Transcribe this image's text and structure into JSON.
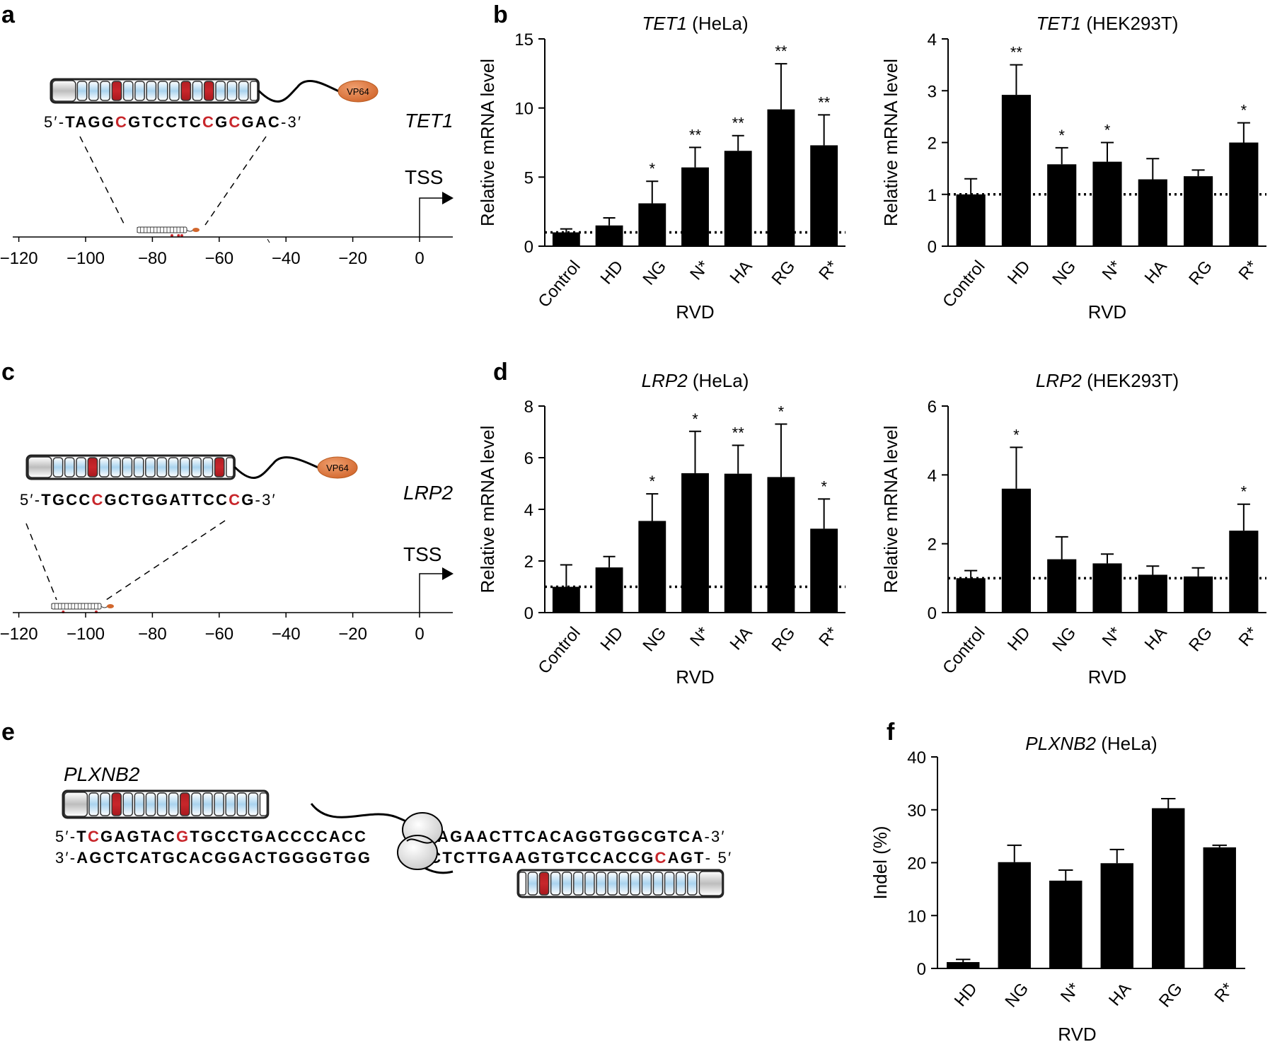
{
  "panels": {
    "a": {
      "letter": "a",
      "gene": "TET1",
      "seq_prefix": "5′-",
      "seq_suffix": "-3′",
      "sequence": [
        "T",
        "A",
        "G",
        "G",
        "C",
        "G",
        "T",
        "C",
        "C",
        "T",
        "C",
        "C",
        "G",
        "C",
        "G",
        "A",
        "C"
      ],
      "red_positions": [
        4,
        11,
        13
      ],
      "tale_repeats": 15,
      "tale_red_repeats": [
        3,
        9,
        11
      ],
      "effector": "VP64",
      "tss_label": "TSS",
      "axis_ticks": [
        "−120",
        "−100",
        "−80",
        "−60",
        "−40",
        "−20",
        "0"
      ]
    },
    "c": {
      "letter": "c",
      "gene": "LRP2",
      "seq_prefix": "5′-",
      "seq_suffix": "-3′",
      "sequence": [
        "T",
        "G",
        "C",
        "C",
        "C",
        "G",
        "C",
        "T",
        "G",
        "G",
        "A",
        "T",
        "T",
        "C",
        "C",
        "C",
        "G"
      ],
      "red_positions": [
        4,
        15
      ],
      "tale_repeats": 15,
      "tale_red_repeats": [
        3,
        14
      ],
      "effector": "VP64",
      "tss_label": "TSS",
      "axis_ticks": [
        "−120",
        "−100",
        "−80",
        "−60",
        "−40",
        "−20",
        "0"
      ]
    },
    "e": {
      "letter": "e",
      "gene": "PLXNB2",
      "top_strand": {
        "prefix": "5′-",
        "suffix": "-3′",
        "left": "TCGAGTACGTGCCTGACCCCACC",
        "right": "TGAGAACTTCACAGGTGGCGTCA",
        "left_red": [
          1,
          8
        ]
      },
      "bottom_strand": {
        "prefix": "3′-",
        "suffix": "- 5′",
        "left": "AGCTCATGCACGGACTGGGGTGG",
        "right": "ACTCTTGAAGTGTCCACCGCAGT",
        "right_red": [
          19
        ]
      }
    }
  },
  "chart_data": [
    {
      "id": "b-left",
      "panel_letter": "b",
      "type": "bar",
      "title_gene": "TET1",
      "title_cell": "(HeLa)",
      "categories": [
        "Control",
        "HD",
        "NG",
        "N*",
        "HA",
        "RG",
        "R*"
      ],
      "values": [
        1.0,
        1.5,
        3.1,
        5.7,
        6.9,
        9.9,
        7.3
      ],
      "errors": [
        0.25,
        0.55,
        1.6,
        1.45,
        1.1,
        3.3,
        2.2
      ],
      "significance": [
        "",
        "",
        "*",
        "**",
        "**",
        "**",
        "**"
      ],
      "ylabel": "Relative mRNA level",
      "xlabel": "RVD",
      "ylim": [
        0,
        15
      ],
      "yticks": [
        "0",
        "5",
        "10",
        "15"
      ],
      "reference_line": 1
    },
    {
      "id": "b-right",
      "type": "bar",
      "title_gene": "TET1",
      "title_cell": "(HEK293T)",
      "categories": [
        "Control",
        "HD",
        "NG",
        "N*",
        "HA",
        "RG",
        "R*"
      ],
      "values": [
        1.0,
        2.92,
        1.58,
        1.63,
        1.29,
        1.35,
        2.0
      ],
      "errors": [
        0.3,
        0.58,
        0.32,
        0.37,
        0.4,
        0.12,
        0.38
      ],
      "significance": [
        "",
        "**",
        "*",
        "*",
        "",
        "",
        "*"
      ],
      "ylabel": "Relative mRNA level",
      "xlabel": "RVD",
      "ylim": [
        0,
        4
      ],
      "yticks": [
        "0",
        "1",
        "2",
        "3",
        "4"
      ],
      "reference_line": 1
    },
    {
      "id": "d-left",
      "panel_letter": "d",
      "type": "bar",
      "title_gene": "LRP2",
      "title_cell": "(HeLa)",
      "categories": [
        "Control",
        "HD",
        "NG",
        "N*",
        "HA",
        "RG",
        "R*"
      ],
      "values": [
        1.0,
        1.75,
        3.55,
        5.4,
        5.38,
        5.25,
        3.25
      ],
      "errors": [
        0.85,
        0.42,
        1.05,
        1.62,
        1.1,
        2.05,
        1.15
      ],
      "significance": [
        "",
        "",
        "*",
        "*",
        "**",
        "*",
        "*"
      ],
      "ylabel": "Relative mRNA level",
      "xlabel": "RVD",
      "ylim": [
        0,
        8
      ],
      "yticks": [
        "0",
        "2",
        "4",
        "6",
        "8"
      ],
      "reference_line": 1
    },
    {
      "id": "d-right",
      "type": "bar",
      "title_gene": "LRP2",
      "title_cell": "(HEK293T)",
      "categories": [
        "Control",
        "HD",
        "NG",
        "N*",
        "HA",
        "RG",
        "R*"
      ],
      "values": [
        1.0,
        3.6,
        1.55,
        1.43,
        1.1,
        1.05,
        2.38
      ],
      "errors": [
        0.22,
        1.2,
        0.65,
        0.27,
        0.25,
        0.25,
        0.77
      ],
      "significance": [
        "",
        "*",
        "",
        "",
        "",
        "",
        "*"
      ],
      "ylabel": "Relative mRNA level",
      "xlabel": "RVD",
      "ylim": [
        0,
        6
      ],
      "yticks": [
        "0",
        "2",
        "4",
        "6"
      ],
      "reference_line": 1
    },
    {
      "id": "f",
      "panel_letter": "f",
      "type": "bar",
      "title_gene": "PLXNB2",
      "title_cell": "(HeLa)",
      "categories": [
        "HD",
        "NG",
        "N*",
        "HA",
        "RG",
        "R*"
      ],
      "values": [
        1.2,
        20.1,
        16.6,
        19.9,
        30.3,
        22.9
      ],
      "errors": [
        0.5,
        3.2,
        2.0,
        2.6,
        1.8,
        0.4
      ],
      "significance": [
        "",
        "",
        "",
        "",
        "",
        ""
      ],
      "ylabel": "Indel (%)",
      "xlabel": "RVD",
      "ylim": [
        0,
        40
      ],
      "yticks": [
        "0",
        "10",
        "20",
        "30",
        "40"
      ],
      "reference_line": null
    }
  ]
}
